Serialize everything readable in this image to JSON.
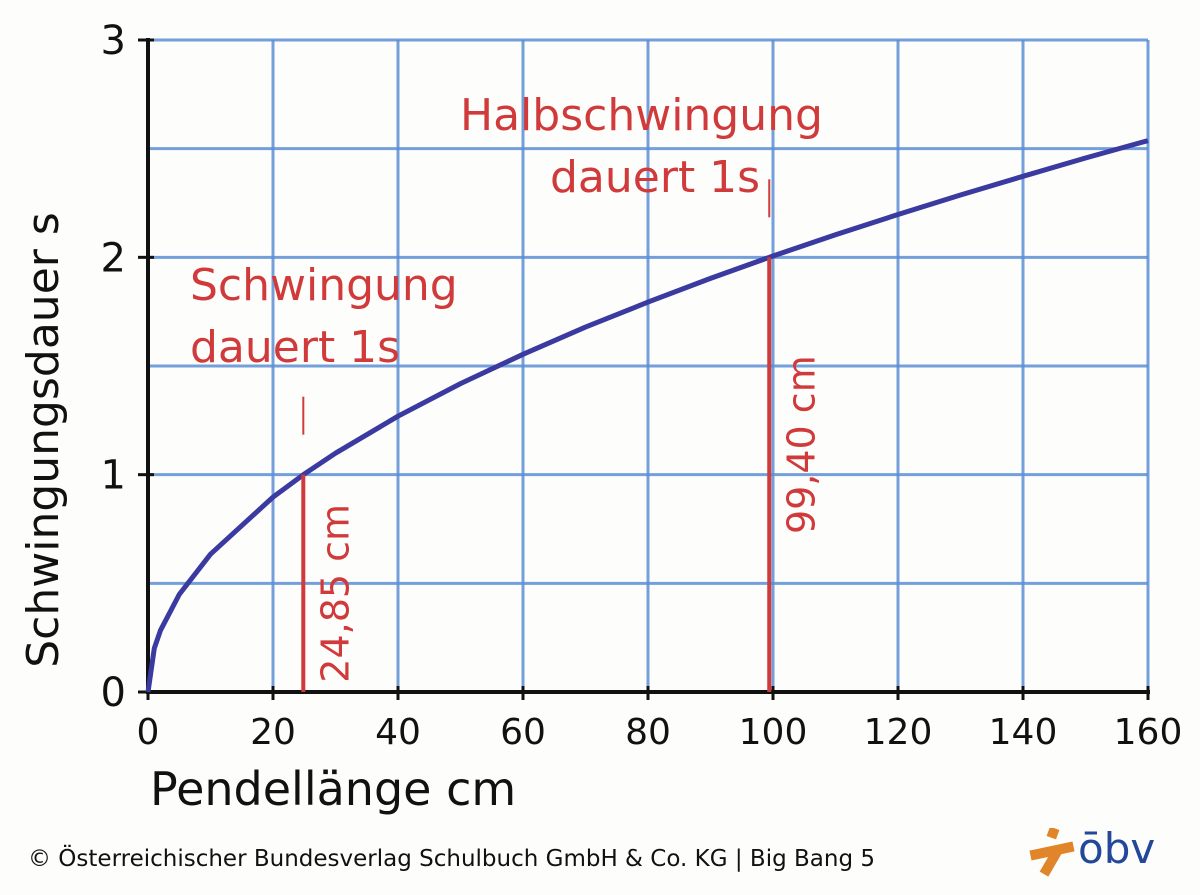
{
  "chart_data": {
    "type": "line",
    "xlabel": "Pendellänge   cm",
    "ylabel": "Schwingungsdauer   s",
    "xlim": [
      0,
      160
    ],
    "ylim": [
      0,
      3
    ],
    "x_ticks": [
      "0",
      "20",
      "40",
      "60",
      "80",
      "100",
      "120",
      "140",
      "160"
    ],
    "y_ticks": [
      "0",
      "1",
      "2",
      "3"
    ],
    "grid": true,
    "series": [
      {
        "x": [
          0,
          1,
          2,
          5,
          10,
          20,
          24.85,
          30,
          40,
          50,
          60,
          70,
          80,
          90,
          99.4,
          100,
          110,
          120,
          130,
          140,
          150,
          160
        ],
        "y": [
          0,
          0.201,
          0.284,
          0.449,
          0.634,
          0.897,
          1.0,
          1.099,
          1.269,
          1.419,
          1.554,
          1.679,
          1.794,
          1.903,
          2.0,
          2.006,
          2.104,
          2.197,
          2.287,
          2.373,
          2.457,
          2.537
        ]
      }
    ],
    "annotations": [
      {
        "x": 24.85,
        "y": 1,
        "label": "24,85 cm",
        "text_lines": [
          "Schwingung",
          "dauert 1s"
        ]
      },
      {
        "x": 99.4,
        "y": 2,
        "label": "99,40 cm",
        "text_lines": [
          "Halbschwingung",
          "dauert 1s"
        ]
      }
    ],
    "colors": {
      "curve": "#3a3aa0",
      "grid": "#5b8fd6",
      "annotation": "#d03a3a",
      "axis": "#111111"
    }
  },
  "footer": {
    "copyright": "© Österreichischer Bundesverlag Schulbuch GmbH & Co. KG |  Big Bang 5",
    "logo_text": "ōbv",
    "logo_color": "#23489a",
    "logo_mark_color": "#e0852a"
  }
}
